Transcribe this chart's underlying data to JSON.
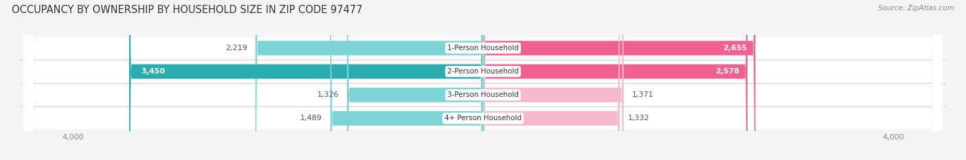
{
  "title": "OCCUPANCY BY OWNERSHIP BY HOUSEHOLD SIZE IN ZIP CODE 97477",
  "source": "Source: ZipAtlas.com",
  "categories": [
    "1-Person Household",
    "2-Person Household",
    "3-Person Household",
    "4+ Person Household"
  ],
  "owner_values": [
    2219,
    3450,
    1326,
    1489
  ],
  "renter_values": [
    2655,
    2578,
    1371,
    1332
  ],
  "max_scale": 4000,
  "owner_color_dark": "#2AACB0",
  "owner_color_light": "#7DD4D6",
  "renter_color_dark": "#F06090",
  "renter_color_light": "#F8B8CC",
  "bg_color": "#f5f5f5",
  "row_bg_color": "#ebebeb",
  "title_fontsize": 10.5,
  "source_fontsize": 7.5,
  "tick_fontsize": 8,
  "bar_label_fontsize": 8,
  "category_fontsize": 7.5,
  "owner_label_threshold": 3000,
  "renter_label_threshold": 2500
}
